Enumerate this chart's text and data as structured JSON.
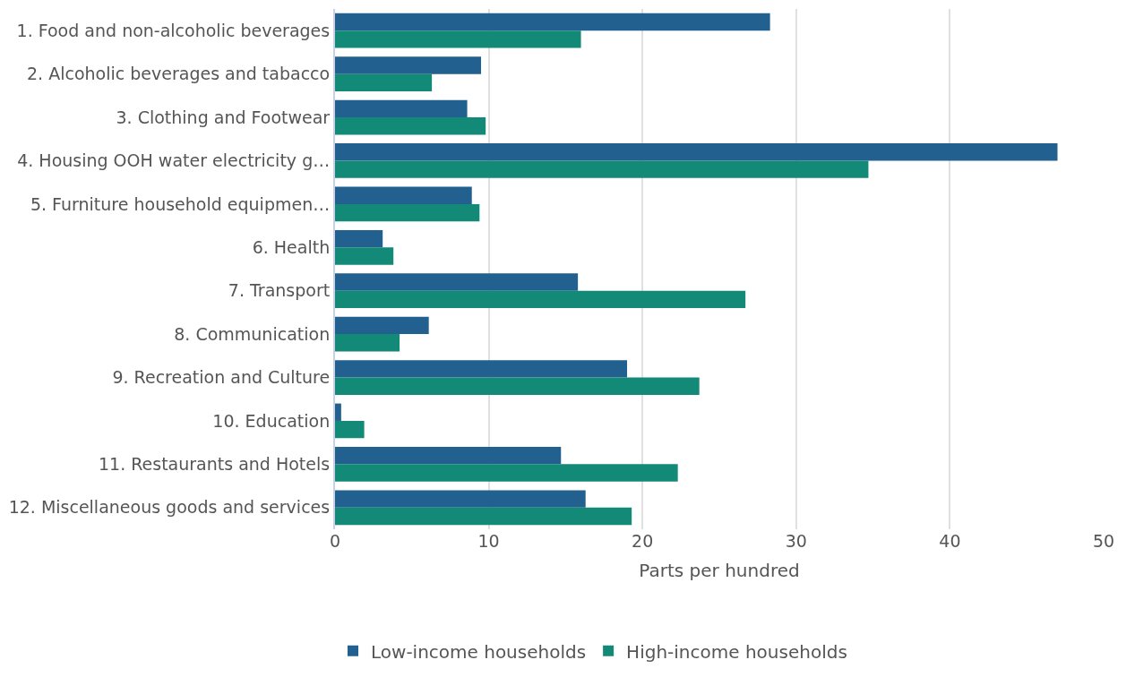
{
  "chart_data": {
    "type": "bar",
    "orientation": "horizontal",
    "xlabel": "Parts per hundred",
    "categories": [
      "1. Food and non-alcoholic beverages",
      "2. Alcoholic beverages and tabacco",
      "3. Clothing and Footwear",
      "4. Housing OOH water electricity g…",
      "5. Furniture household equipmen…",
      "6. Health",
      "7. Transport",
      "8. Communication",
      "9. Recreation and Culture",
      "10. Education",
      "11. Restaurants and Hotels",
      "12. Miscellaneous goods and services"
    ],
    "series": [
      {
        "name": "Low-income households",
        "color": "#22608f",
        "values": [
          28.3,
          9.5,
          8.6,
          47.0,
          8.9,
          3.1,
          15.8,
          6.1,
          19.0,
          0.4,
          14.7,
          16.3
        ]
      },
      {
        "name": "High-income households",
        "color": "#138a78",
        "values": [
          16.0,
          6.3,
          9.8,
          34.7,
          9.4,
          3.8,
          26.7,
          4.2,
          23.7,
          1.9,
          22.3,
          19.3
        ]
      }
    ],
    "xlim": [
      0,
      50
    ],
    "xticks": [
      0,
      10,
      20,
      30,
      40,
      50
    ],
    "grid": "x",
    "legend": "bottom"
  }
}
